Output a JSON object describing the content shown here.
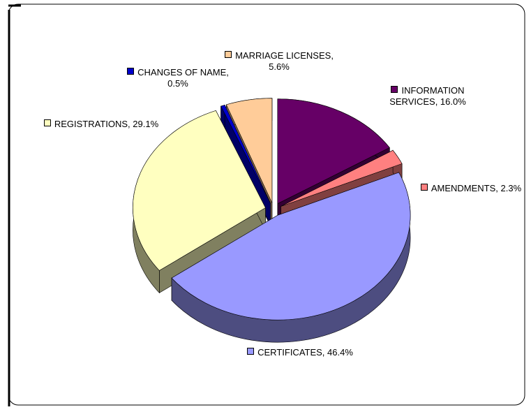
{
  "chart_data": {
    "type": "pie",
    "values": [
      16.0,
      2.3,
      46.4,
      29.1,
      0.5,
      5.6
    ],
    "value_labels": [
      "INFORMATION SERVICES, 16.0%",
      "AMENDMENTS, 2.3%",
      "CERTIFICATES, 46.4%",
      "REGISTRATIONS, 29.1%",
      "CHANGES OF NAME, 0.5%",
      "MARRIAGE LICENSES, 5.6%"
    ],
    "colors": [
      "#660066",
      "#ff8080",
      "#9999ff",
      "#ffffc0",
      "#0000cc",
      "#ffcc99"
    ]
  }
}
